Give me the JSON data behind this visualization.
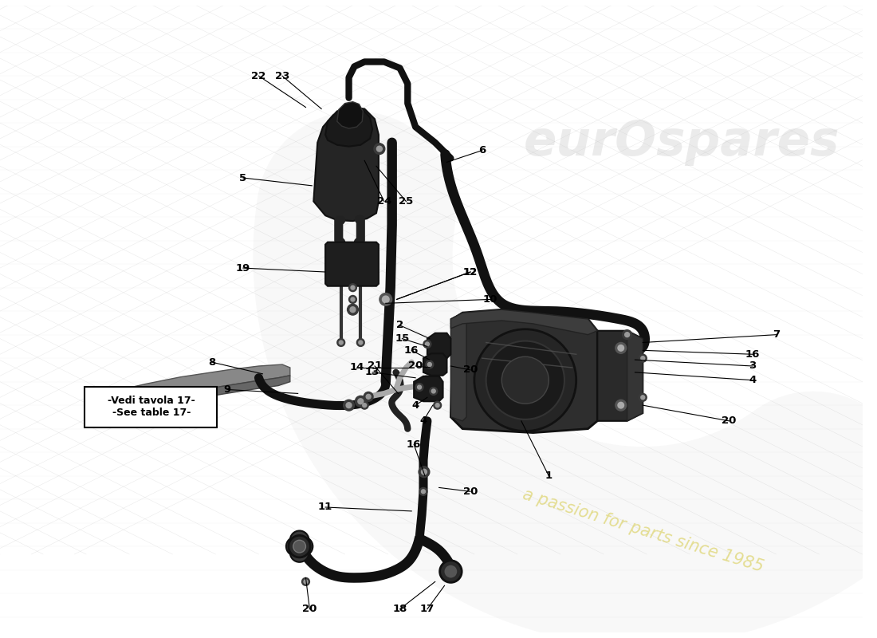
{
  "background_color": "#ffffff",
  "grid_color": "#cccccc",
  "watermark1": "eurOspares",
  "watermark2": "a passion for parts since 1985",
  "vedi_text": "-Vedi tavola 17-\n-See table 17-",
  "diagram_color": "#111111",
  "parts_color": "#222222",
  "hose_color": "#1a1a1a",
  "metal_color": "#888888",
  "light_metal": "#aaaaaa",
  "pump_face": "#383838",
  "pump_body": "#2a2a2a",
  "reservoir_body": "#1e1e1e",
  "bracket_color": "#333333",
  "wm1_color": "#c0c0c0",
  "wm1_alpha": 0.3,
  "wm2_color": "#d4c840",
  "wm2_alpha": 0.55,
  "wm_arc_color": "#d0d0d0",
  "wm_arc_alpha": 0.15
}
